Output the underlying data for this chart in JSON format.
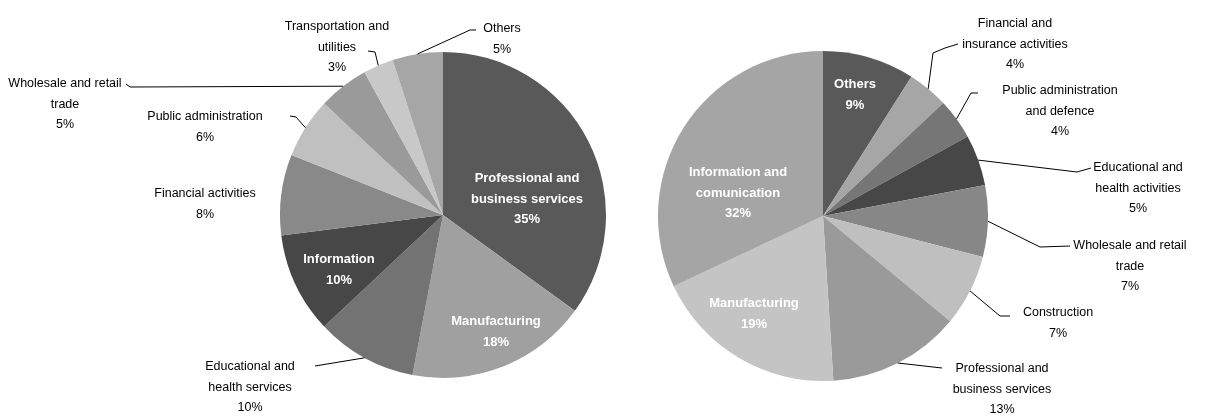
{
  "chart_data": [
    {
      "type": "pie",
      "categories": [
        "Professional and business services",
        "Manufacturing",
        "Educational and health services",
        "Information",
        "Financial activities",
        "Public administration",
        "Wholesale and retail trade",
        "Transportation and utilities",
        "Others"
      ],
      "values": [
        35,
        18,
        10,
        10,
        8,
        6,
        5,
        3,
        5
      ],
      "value_labels": [
        "35%",
        "18%",
        "10%",
        "10%",
        "8%",
        "6%",
        "5%",
        "3%",
        "5%"
      ],
      "colors": [
        "#595959",
        "#a0a0a0",
        "#737373",
        "#474747",
        "#898989",
        "#c0c0c0",
        "#9a9a9a",
        "#c8c8c8",
        "#a6a6a6"
      ]
    },
    {
      "type": "pie",
      "categories": [
        "Others",
        "Financial and insurance activities",
        "Public administration and defence",
        "Educational and health activities",
        "Wholesale and retail trade",
        "Construction",
        "Professional and business services",
        "Manufacturing",
        "Information and comunication"
      ],
      "values": [
        9,
        4,
        4,
        5,
        7,
        7,
        13,
        19,
        32
      ],
      "value_labels": [
        "9%",
        "4%",
        "4%",
        "5%",
        "7%",
        "7%",
        "13%",
        "19%",
        "32%"
      ],
      "colors": [
        "#595959",
        "#a6a6a6",
        "#767676",
        "#474747",
        "#878787",
        "#bfbfbf",
        "#9a9a9a",
        "#c4c4c4",
        "#a5a5a5"
      ]
    }
  ]
}
